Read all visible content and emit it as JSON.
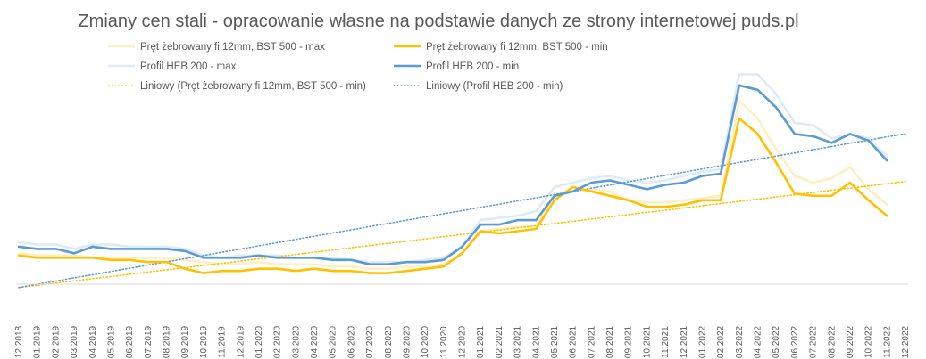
{
  "chart_data": {
    "type": "line",
    "title": "Zmiany cen stali - opracowanie własne na podstawie danych ze strony internetowej puds.pl",
    "xlabel": "",
    "ylabel": "",
    "grid": false,
    "legend_position": "top",
    "y_axis_visible": false,
    "ylim": [
      0,
      100
    ],
    "categories": [
      "12.2018",
      "01.2019",
      "02.2019",
      "03.2019",
      "04.2019",
      "05.2019",
      "06.2019",
      "07.2019",
      "08.2019",
      "09.2019",
      "10.2019",
      "11.2019",
      "12.2019",
      "01.2020",
      "02.2020",
      "03.2020",
      "04.2020",
      "05.2020",
      "06.2020",
      "07.2020",
      "08.2020",
      "09.2020",
      "10.2020",
      "11.2020",
      "12.2020",
      "01.2021",
      "02.2021",
      "03.2021",
      "04.2021",
      "05.2021",
      "06.2021",
      "07.2021",
      "08.2021",
      "09.2021",
      "10.2021",
      "11.2021",
      "12.2021",
      "01.2022",
      "02.2022",
      "03.2022",
      "04.2022",
      "05.2022",
      "06.2022",
      "07.2022",
      "08.2022",
      "09.2022",
      "10.2022",
      "11.2022",
      "12.2022"
    ],
    "series": [
      {
        "name": "Pręt żebrowany fi 12mm, BST 500 - max",
        "color": "#FCEFC2",
        "style": "solid",
        "values": [
          16,
          15,
          15,
          15,
          14,
          14,
          14,
          14,
          14,
          13,
          12,
          11,
          11,
          12,
          11,
          11,
          11,
          10,
          10,
          9,
          9,
          10,
          10,
          11,
          16,
          26,
          27,
          28,
          28,
          43,
          44,
          45,
          44,
          40,
          39,
          39,
          40,
          41,
          42,
          85,
          77,
          63,
          51,
          48,
          50,
          55,
          45,
          38,
          null
        ]
      },
      {
        "name": "Pręt żebrowany fi 12mm, BST 500 - min",
        "color": "#FFC000",
        "style": "solid",
        "values": [
          15,
          14,
          14,
          14,
          14,
          13,
          13,
          12,
          12,
          9,
          7,
          8,
          8,
          9,
          9,
          8,
          9,
          8,
          8,
          7,
          7,
          8,
          9,
          10,
          16,
          26,
          25,
          26,
          27,
          40,
          46,
          44,
          42,
          40,
          37,
          37,
          38,
          40,
          40,
          77,
          70,
          57,
          43,
          42,
          42,
          48,
          40,
          33,
          null
        ]
      },
      {
        "name": "Profil HEB 200 - max",
        "color": "#DEEBF7",
        "style": "solid",
        "values": [
          21,
          20,
          20,
          18,
          20,
          20,
          19,
          19,
          19,
          18,
          15,
          14,
          15,
          15,
          15,
          14,
          14,
          14,
          13,
          12,
          12,
          12,
          13,
          14,
          19,
          31,
          32,
          33,
          35,
          46,
          48,
          50,
          51,
          49,
          48,
          49,
          51,
          53,
          54,
          97,
          97,
          88,
          75,
          74,
          68,
          70,
          68,
          60,
          null
        ]
      },
      {
        "name": "Profil HEB 200 - min",
        "color": "#5B9BD5",
        "style": "solid",
        "values": [
          19,
          18,
          18,
          16,
          19,
          18,
          18,
          18,
          18,
          17,
          14,
          14,
          14,
          15,
          14,
          14,
          14,
          13,
          13,
          11,
          11,
          12,
          12,
          13,
          19,
          29,
          29,
          31,
          31,
          42,
          44,
          48,
          49,
          47,
          45,
          47,
          48,
          51,
          52,
          92,
          90,
          82,
          70,
          69,
          66,
          70,
          67,
          58,
          null
        ]
      },
      {
        "name": "Liniowy (Pręt żebrowany fi 12mm, BST 500 - min)",
        "color": "#FFC000",
        "style": "dotted",
        "values": [
          0.5,
          1.5,
          2.5,
          3.5,
          4.5,
          5.5,
          6.5,
          7.5,
          8.5,
          9.5,
          10.5,
          11.5,
          12.5,
          13.5,
          14.5,
          15.5,
          16.5,
          17.5,
          18.5,
          19.5,
          20.5,
          21.5,
          22.5,
          23.5,
          24.5,
          25.5,
          26.5,
          27.5,
          28.5,
          29.5,
          30.5,
          31.5,
          32.5,
          33.5,
          34.5,
          35.5,
          36.5,
          37.5,
          38.5,
          39.5,
          40.5,
          41.5,
          42.5,
          43.5,
          44.5,
          45.5,
          46.5,
          47.5,
          48.5
        ]
      },
      {
        "name": "Liniowy (Profil HEB 200 - min)",
        "color": "#5B9BD5",
        "style": "dotted",
        "values": [
          0.5,
          2.0,
          3.4,
          4.9,
          6.3,
          7.8,
          9.2,
          10.7,
          12.1,
          13.6,
          15.0,
          16.5,
          17.9,
          19.4,
          20.8,
          22.3,
          23.7,
          25.2,
          26.6,
          28.1,
          29.5,
          31.0,
          32.4,
          33.9,
          35.3,
          36.8,
          38.2,
          39.7,
          41.1,
          42.6,
          44.0,
          45.5,
          46.9,
          48.4,
          49.8,
          51.3,
          52.7,
          54.2,
          55.6,
          57.1,
          58.5,
          60.0,
          61.4,
          62.9,
          64.3,
          65.8,
          67.2,
          68.7,
          70.1
        ]
      }
    ]
  }
}
